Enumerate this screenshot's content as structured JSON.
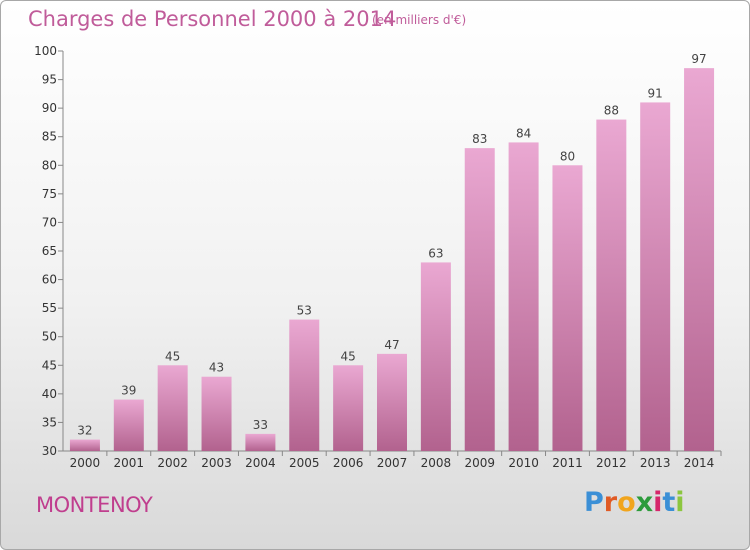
{
  "header": {
    "title": "Charges de Personnel 2000 à 2014",
    "unit": "(en milliers d'€)"
  },
  "footer": {
    "commune": "MONTENOY",
    "brand_letters": [
      "P",
      "r",
      "o",
      "x",
      "i",
      "t",
      "i"
    ],
    "brand_colors": [
      "#3b8fd6",
      "#e05a24",
      "#f1a51d",
      "#2c9b3b",
      "#d6276b",
      "#3b8fd6",
      "#8cc63f"
    ]
  },
  "colors": {
    "bar_top": "#eaa8d2",
    "bar_bottom": "#b2628e",
    "title": "#c05c9a",
    "axis": "#888888"
  },
  "chart_data": {
    "type": "bar",
    "title": "Charges de Personnel 2000 à 2014",
    "subtitle": "(en milliers d'€)",
    "xlabel": "",
    "ylabel": "",
    "categories": [
      "2000",
      "2001",
      "2002",
      "2003",
      "2004",
      "2005",
      "2006",
      "2007",
      "2008",
      "2009",
      "2010",
      "2011",
      "2012",
      "2013",
      "2014"
    ],
    "values": [
      32,
      39,
      45,
      43,
      33,
      53,
      45,
      47,
      63,
      83,
      84,
      80,
      88,
      91,
      97
    ],
    "ylim": [
      30,
      100
    ],
    "yticks": [
      30,
      35,
      40,
      45,
      50,
      55,
      60,
      65,
      70,
      75,
      80,
      85,
      90,
      95,
      100
    ],
    "grid": false,
    "legend": "none"
  }
}
